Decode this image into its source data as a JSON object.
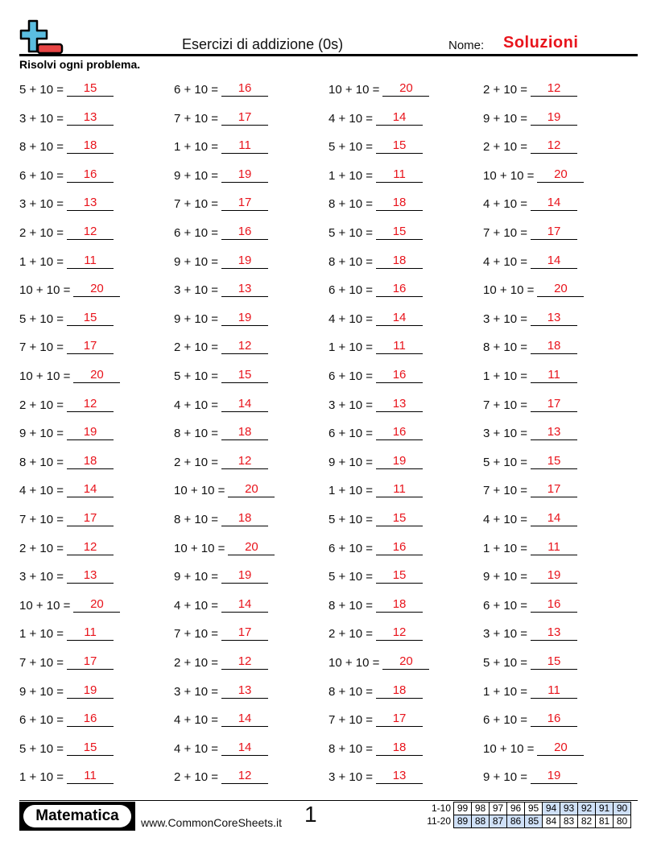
{
  "header": {
    "title": "Esercizi di addizione (0s)",
    "name_label": "Nome:",
    "name_value": "Soluzioni",
    "instructions": "Risolvi ogni problema."
  },
  "colors": {
    "answer": "#e8141c",
    "logo_plus": "#5bbde0",
    "logo_minus": "#e84545",
    "highlight": "#cfe0f7"
  },
  "problems": [
    [
      [
        "5 + 10 =",
        "15"
      ],
      [
        "3 + 10 =",
        "13"
      ],
      [
        "8 + 10 =",
        "18"
      ],
      [
        "6 + 10 =",
        "16"
      ],
      [
        "3 + 10 =",
        "13"
      ],
      [
        "2 + 10 =",
        "12"
      ],
      [
        "1 + 10 =",
        "11"
      ],
      [
        "10 + 10 =",
        "20"
      ],
      [
        "5 + 10 =",
        "15"
      ],
      [
        "7 + 10 =",
        "17"
      ],
      [
        "10 + 10 =",
        "20"
      ],
      [
        "2 + 10 =",
        "12"
      ],
      [
        "9 + 10 =",
        "19"
      ],
      [
        "8 + 10 =",
        "18"
      ],
      [
        "4 + 10 =",
        "14"
      ],
      [
        "7 + 10 =",
        "17"
      ],
      [
        "2 + 10 =",
        "12"
      ],
      [
        "3 + 10 =",
        "13"
      ],
      [
        "10 + 10 =",
        "20"
      ],
      [
        "1 + 10 =",
        "11"
      ],
      [
        "7 + 10 =",
        "17"
      ],
      [
        "9 + 10 =",
        "19"
      ],
      [
        "6 + 10 =",
        "16"
      ],
      [
        "5 + 10 =",
        "15"
      ],
      [
        "1 + 10 =",
        "11"
      ]
    ],
    [
      [
        "6 + 10 =",
        "16"
      ],
      [
        "7 + 10 =",
        "17"
      ],
      [
        "1 + 10 =",
        "11"
      ],
      [
        "9 + 10 =",
        "19"
      ],
      [
        "7 + 10 =",
        "17"
      ],
      [
        "6 + 10 =",
        "16"
      ],
      [
        "9 + 10 =",
        "19"
      ],
      [
        "3 + 10 =",
        "13"
      ],
      [
        "9 + 10 =",
        "19"
      ],
      [
        "2 + 10 =",
        "12"
      ],
      [
        "5 + 10 =",
        "15"
      ],
      [
        "4 + 10 =",
        "14"
      ],
      [
        "8 + 10 =",
        "18"
      ],
      [
        "2 + 10 =",
        "12"
      ],
      [
        "10 + 10 =",
        "20"
      ],
      [
        "8 + 10 =",
        "18"
      ],
      [
        "10 + 10 =",
        "20"
      ],
      [
        "9 + 10 =",
        "19"
      ],
      [
        "4 + 10 =",
        "14"
      ],
      [
        "7 + 10 =",
        "17"
      ],
      [
        "2 + 10 =",
        "12"
      ],
      [
        "3 + 10 =",
        "13"
      ],
      [
        "4 + 10 =",
        "14"
      ],
      [
        "4 + 10 =",
        "14"
      ],
      [
        "2 + 10 =",
        "12"
      ]
    ],
    [
      [
        "10 + 10 =",
        "20"
      ],
      [
        "4 + 10 =",
        "14"
      ],
      [
        "5 + 10 =",
        "15"
      ],
      [
        "1 + 10 =",
        "11"
      ],
      [
        "8 + 10 =",
        "18"
      ],
      [
        "5 + 10 =",
        "15"
      ],
      [
        "8 + 10 =",
        "18"
      ],
      [
        "6 + 10 =",
        "16"
      ],
      [
        "4 + 10 =",
        "14"
      ],
      [
        "1 + 10 =",
        "11"
      ],
      [
        "6 + 10 =",
        "16"
      ],
      [
        "3 + 10 =",
        "13"
      ],
      [
        "6 + 10 =",
        "16"
      ],
      [
        "9 + 10 =",
        "19"
      ],
      [
        "1 + 10 =",
        "11"
      ],
      [
        "5 + 10 =",
        "15"
      ],
      [
        "6 + 10 =",
        "16"
      ],
      [
        "5 + 10 =",
        "15"
      ],
      [
        "8 + 10 =",
        "18"
      ],
      [
        "2 + 10 =",
        "12"
      ],
      [
        "10 + 10 =",
        "20"
      ],
      [
        "8 + 10 =",
        "18"
      ],
      [
        "7 + 10 =",
        "17"
      ],
      [
        "8 + 10 =",
        "18"
      ],
      [
        "3 + 10 =",
        "13"
      ]
    ],
    [
      [
        "2 + 10 =",
        "12"
      ],
      [
        "9 + 10 =",
        "19"
      ],
      [
        "2 + 10 =",
        "12"
      ],
      [
        "10 + 10 =",
        "20"
      ],
      [
        "4 + 10 =",
        "14"
      ],
      [
        "7 + 10 =",
        "17"
      ],
      [
        "4 + 10 =",
        "14"
      ],
      [
        "10 + 10 =",
        "20"
      ],
      [
        "3 + 10 =",
        "13"
      ],
      [
        "8 + 10 =",
        "18"
      ],
      [
        "1 + 10 =",
        "11"
      ],
      [
        "7 + 10 =",
        "17"
      ],
      [
        "3 + 10 =",
        "13"
      ],
      [
        "5 + 10 =",
        "15"
      ],
      [
        "7 + 10 =",
        "17"
      ],
      [
        "4 + 10 =",
        "14"
      ],
      [
        "1 + 10 =",
        "11"
      ],
      [
        "9 + 10 =",
        "19"
      ],
      [
        "6 + 10 =",
        "16"
      ],
      [
        "3 + 10 =",
        "13"
      ],
      [
        "5 + 10 =",
        "15"
      ],
      [
        "1 + 10 =",
        "11"
      ],
      [
        "6 + 10 =",
        "16"
      ],
      [
        "10 + 10 =",
        "20"
      ],
      [
        "9 + 10 =",
        "19"
      ]
    ]
  ],
  "footer": {
    "brand": "Matematica",
    "site": "www.CommonCoreSheets.it",
    "page": "1",
    "score_rows": [
      {
        "label": "1-10",
        "values": [
          "99",
          "98",
          "97",
          "96",
          "95",
          "94",
          "93",
          "92",
          "91",
          "90"
        ],
        "highlighted": [
          false,
          false,
          false,
          false,
          false,
          true,
          true,
          true,
          true,
          true
        ]
      },
      {
        "label": "11-20",
        "values": [
          "89",
          "88",
          "87",
          "86",
          "85",
          "84",
          "83",
          "82",
          "81",
          "80"
        ],
        "highlighted": [
          true,
          true,
          true,
          true,
          true,
          false,
          false,
          false,
          false,
          false
        ]
      }
    ]
  }
}
